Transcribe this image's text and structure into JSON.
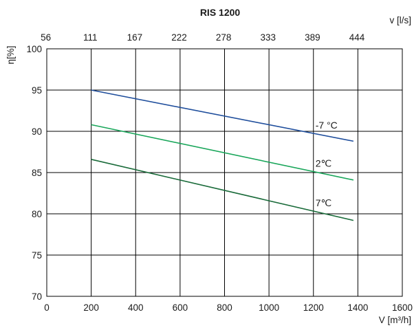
{
  "chart_data": {
    "type": "line",
    "title": "RIS 1200",
    "xlabel": "V [m³/h]",
    "ylabel": "η[%]",
    "x2label": "v [l/s]",
    "xlim": [
      0,
      1600
    ],
    "ylim": [
      70,
      100
    ],
    "xticks": [
      0,
      200,
      400,
      600,
      800,
      1000,
      1200,
      1400,
      1600
    ],
    "yticks": [
      70,
      75,
      80,
      85,
      90,
      95,
      100
    ],
    "x2ticks": [
      {
        "at": 200,
        "label": "56"
      },
      {
        "at": 400,
        "label": "111"
      },
      {
        "at": 600,
        "label": "167"
      },
      {
        "at": 800,
        "label": "222"
      },
      {
        "at": 1000,
        "label": "278"
      },
      {
        "at": 1200,
        "label": "333"
      },
      {
        "at": 1400,
        "label": "389"
      },
      {
        "at": 1600,
        "label": "444"
      }
    ],
    "grid": true,
    "series": [
      {
        "name": "-7 °C",
        "color": "#1f4e9c",
        "x": [
          200,
          1380
        ],
        "values": [
          95.0,
          88.8
        ]
      },
      {
        "name": "2℃",
        "color": "#19a65a",
        "x": [
          200,
          1380
        ],
        "values": [
          90.8,
          84.1
        ]
      },
      {
        "name": "7℃",
        "color": "#1a6b3a",
        "x": [
          200,
          1380
        ],
        "values": [
          86.6,
          79.2
        ]
      }
    ]
  }
}
